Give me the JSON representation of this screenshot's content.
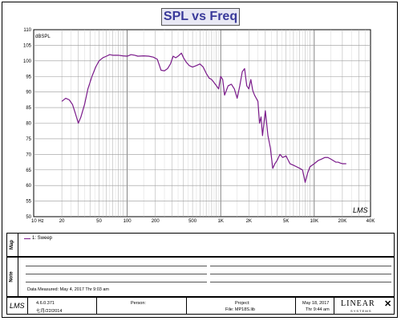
{
  "chart_data": {
    "type": "line",
    "title": "SPL vs Freq",
    "ylabel": "dBSPL",
    "xlabel": "",
    "x_scale": "log",
    "xlim": [
      10,
      40000
    ],
    "ylim": [
      50,
      110
    ],
    "y_ticks": [
      50,
      55,
      60,
      65,
      70,
      75,
      80,
      85,
      90,
      95,
      100,
      105,
      110
    ],
    "x_ticks": [
      {
        "value": 10,
        "label": "10  Hz"
      },
      {
        "value": 20,
        "label": "20"
      },
      {
        "value": 50,
        "label": "50"
      },
      {
        "value": 100,
        "label": "100"
      },
      {
        "value": 200,
        "label": "200"
      },
      {
        "value": 500,
        "label": "500"
      },
      {
        "value": 1000,
        "label": "1K"
      },
      {
        "value": 2000,
        "label": "2K"
      },
      {
        "value": 5000,
        "label": "5K"
      },
      {
        "value": 10000,
        "label": "10K"
      },
      {
        "value": 20000,
        "label": "20K"
      },
      {
        "value": 40000,
        "label": "40K"
      }
    ],
    "grid": true,
    "series": [
      {
        "name": "1: Sweep",
        "color": "#7a1a8a",
        "x": [
          20,
          22,
          24,
          26,
          28,
          30,
          32,
          35,
          38,
          42,
          46,
          50,
          55,
          60,
          65,
          70,
          80,
          90,
          100,
          110,
          120,
          130,
          150,
          170,
          190,
          210,
          230,
          250,
          270,
          290,
          310,
          330,
          350,
          380,
          400,
          430,
          460,
          500,
          550,
          600,
          650,
          700,
          750,
          800,
          850,
          900,
          950,
          1000,
          1050,
          1100,
          1200,
          1300,
          1400,
          1500,
          1600,
          1700,
          1800,
          1900,
          2000,
          2100,
          2200,
          2300,
          2400,
          2500,
          2600,
          2700,
          2800,
          3000,
          3200,
          3400,
          3600,
          3800,
          4000,
          4300,
          4600,
          5000,
          5500,
          6000,
          6500,
          7000,
          7500,
          8000,
          8500,
          9000,
          10000,
          11000,
          12000,
          13000,
          14000,
          15000,
          16000,
          17000,
          18000,
          19000,
          20000,
          22000
        ],
        "y": [
          87,
          88,
          87.5,
          86,
          83,
          80,
          82,
          86,
          91,
          95,
          98,
          100,
          101,
          101.5,
          102,
          101.8,
          101.8,
          101.6,
          101.5,
          102,
          101.8,
          101.5,
          101.6,
          101.5,
          101.2,
          100.5,
          97,
          96.8,
          97.5,
          99,
          101.5,
          101,
          101.5,
          102.5,
          101,
          99.5,
          98.5,
          98,
          98.5,
          99,
          98,
          96,
          94.5,
          94,
          93,
          92,
          91,
          95,
          94,
          89,
          92,
          92.5,
          91,
          88,
          92,
          96.5,
          97.5,
          92,
          91,
          94,
          90.5,
          89,
          88,
          87,
          80,
          82,
          76,
          84,
          76,
          72,
          65.5,
          67,
          68,
          70,
          69,
          69.5,
          67,
          66.5,
          66,
          65.5,
          65,
          61,
          64,
          66,
          67,
          68,
          68.5,
          69,
          69,
          68.5,
          68,
          67.5,
          67.5,
          67.2,
          67,
          67
        ]
      }
    ]
  },
  "legend_label": "1: Sweep",
  "panels": {
    "map_label": "Map",
    "note_label": "Note",
    "data_measured": "Data Measured: May  4, 2017   Thr  9:03 am"
  },
  "footer": {
    "logo": "LMS",
    "version": "4.6.0.371",
    "version_date": "七月/22/2014",
    "person_label": "Person:",
    "project_label": "Project:",
    "file_label": "File: MP18S.lib",
    "date": "May 18, 2017",
    "time": "Thr  9:44 am",
    "brand": "LINEAR",
    "brand_sub": "S Y S T E M S"
  },
  "chart_logo": "LMS"
}
